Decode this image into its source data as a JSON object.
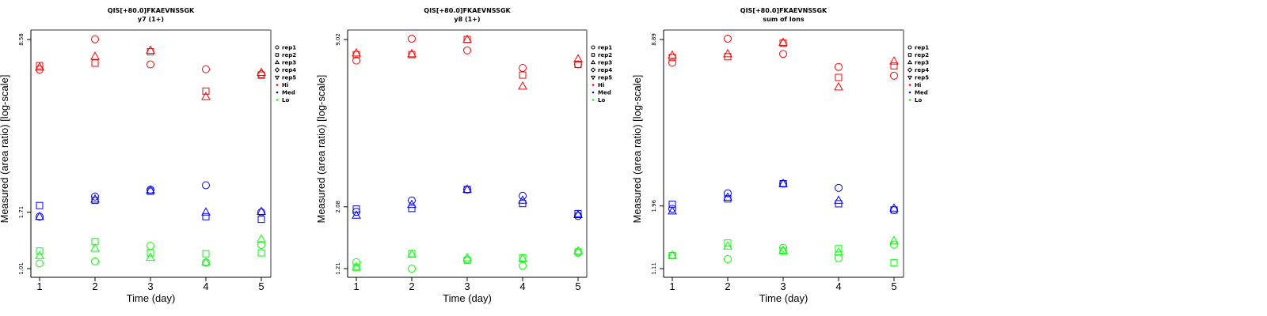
{
  "colors": {
    "Hi": "#ff0000",
    "Med": "#0000ff",
    "Lo": "#00ff00",
    "axis": "#000000",
    "frame": "#777777"
  },
  "chart_data": [
    {
      "type": "scatter",
      "title": "QIS[+80.0]FKAEVNSSGK",
      "subtitle": "y7 (1+)",
      "xlabel": "Time (day)",
      "ylabel": "Measured (area ratio) [log-scale]",
      "yscale": "log",
      "xticks": [
        1,
        2,
        3,
        4,
        5
      ],
      "yticks": [
        1.01,
        1.71,
        8.58
      ],
      "ytick_labels": [
        "1.01",
        "1.71",
        "8.58"
      ],
      "ylim": [
        0.93,
        9.9
      ],
      "xlim": [
        0.84,
        5.16
      ],
      "legend": {
        "position": "outside-right",
        "shapes": [
          "rep1",
          "rep2",
          "rep3",
          "rep4",
          "rep5"
        ],
        "groups": [
          "Hi",
          "Med",
          "Lo"
        ]
      },
      "series": [
        {
          "group": "Hi",
          "rep": "rep1",
          "x": [
            1,
            2,
            3,
            4,
            5
          ],
          "y": [
            6.48,
            8.6,
            6.8,
            6.5,
            6.2
          ]
        },
        {
          "group": "Hi",
          "rep": "rep2",
          "x": [
            1,
            2,
            3,
            4,
            5
          ],
          "y": [
            6.72,
            6.88,
            7.65,
            5.3,
            6.15
          ]
        },
        {
          "group": "Hi",
          "rep": "rep3",
          "x": [
            1,
            2,
            3,
            4,
            5
          ],
          "y": [
            6.62,
            7.32,
            7.75,
            5.03,
            6.3
          ]
        },
        {
          "group": "Med",
          "rep": "rep1",
          "x": [
            1,
            2,
            3,
            4,
            5
          ],
          "y": [
            1.64,
            1.98,
            2.11,
            2.2,
            1.71
          ]
        },
        {
          "group": "Med",
          "rep": "rep2",
          "x": [
            1,
            2,
            3,
            4,
            5
          ],
          "y": [
            1.82,
            1.91,
            2.08,
            1.64,
            1.6
          ]
        },
        {
          "group": "Med",
          "rep": "rep3",
          "x": [
            1,
            2,
            3,
            4,
            5
          ],
          "y": [
            1.64,
            1.93,
            2.1,
            1.71,
            1.72
          ]
        },
        {
          "group": "Lo",
          "rep": "rep1",
          "x": [
            1,
            2,
            3,
            4,
            5
          ],
          "y": [
            1.06,
            1.08,
            1.25,
            1.07,
            1.26
          ]
        },
        {
          "group": "Lo",
          "rep": "rep2",
          "x": [
            1,
            2,
            3,
            4,
            5
          ],
          "y": [
            1.19,
            1.3,
            1.17,
            1.16,
            1.17
          ]
        },
        {
          "group": "Lo",
          "rep": "rep3",
          "x": [
            1,
            2,
            3,
            4,
            5
          ],
          "y": [
            1.14,
            1.22,
            1.12,
            1.07,
            1.33
          ]
        }
      ]
    },
    {
      "type": "scatter",
      "title": "QIS[+80.0]FKAEVNSSGK",
      "subtitle": "y8 (1+)",
      "xlabel": "Time (day)",
      "ylabel": "Measured (area ratio) [log-scale]",
      "yscale": "log",
      "xticks": [
        1,
        2,
        3,
        4,
        5
      ],
      "yticks": [
        1.21,
        2.08,
        9.02
      ],
      "ytick_labels": [
        "1.21",
        "2.08",
        "9.02"
      ],
      "ylim": [
        1.13,
        10.3
      ],
      "xlim": [
        0.84,
        5.16
      ],
      "legend": {
        "position": "outside-right",
        "shapes": [
          "rep1",
          "rep2",
          "rep3",
          "rep4",
          "rep5"
        ],
        "groups": [
          "Hi",
          "Med",
          "Lo"
        ]
      },
      "series": [
        {
          "group": "Hi",
          "rep": "rep1",
          "x": [
            1,
            2,
            3,
            4,
            5
          ],
          "y": [
            7.5,
            9.08,
            8.2,
            7.03,
            7.25
          ]
        },
        {
          "group": "Hi",
          "rep": "rep2",
          "x": [
            1,
            2,
            3,
            4,
            5
          ],
          "y": [
            7.9,
            7.9,
            9.02,
            6.6,
            7.25
          ]
        },
        {
          "group": "Hi",
          "rep": "rep3",
          "x": [
            1,
            2,
            3,
            4,
            5
          ],
          "y": [
            8.0,
            7.95,
            9.02,
            5.98,
            7.6
          ]
        },
        {
          "group": "Med",
          "rep": "rep1",
          "x": [
            1,
            2,
            3,
            4,
            5
          ],
          "y": [
            1.99,
            2.2,
            2.42,
            2.29,
            1.92
          ]
        },
        {
          "group": "Med",
          "rep": "rep2",
          "x": [
            1,
            2,
            3,
            4,
            5
          ],
          "y": [
            2.04,
            2.05,
            2.42,
            2.14,
            1.96
          ]
        },
        {
          "group": "Med",
          "rep": "rep3",
          "x": [
            1,
            2,
            3,
            4,
            5
          ],
          "y": [
            1.93,
            2.12,
            2.42,
            2.2,
            1.94
          ]
        },
        {
          "group": "Lo",
          "rep": "rep1",
          "x": [
            1,
            2,
            3,
            4,
            5
          ],
          "y": [
            1.28,
            1.21,
            1.31,
            1.24,
            1.39
          ]
        },
        {
          "group": "Lo",
          "rep": "rep2",
          "x": [
            1,
            2,
            3,
            4,
            5
          ],
          "y": [
            1.22,
            1.38,
            1.3,
            1.33,
            1.4
          ]
        },
        {
          "group": "Lo",
          "rep": "rep3",
          "x": [
            1,
            2,
            3,
            4,
            5
          ],
          "y": [
            1.23,
            1.37,
            1.33,
            1.32,
            1.41
          ]
        }
      ]
    },
    {
      "type": "scatter",
      "title": "QIS[+80.0]FKAEVNSSGK",
      "subtitle": "sum of Ions",
      "xlabel": "Time (day)",
      "ylabel": "Measured (area ratio) [log-scale]",
      "yscale": "log",
      "xticks": [
        1,
        2,
        3,
        4,
        5
      ],
      "yticks": [
        1.11,
        1.96,
        8.89
      ],
      "ytick_labels": [
        "1.11",
        "1.96",
        "8.89"
      ],
      "ylim": [
        1.03,
        10.1
      ],
      "xlim": [
        0.84,
        5.16
      ],
      "legend": {
        "position": "outside-right",
        "shapes": [
          "rep1",
          "rep2",
          "rep3",
          "rep4",
          "rep5"
        ],
        "groups": [
          "Hi",
          "Med",
          "Lo"
        ]
      },
      "series": [
        {
          "group": "Hi",
          "rep": "rep1",
          "x": [
            1,
            2,
            3,
            4,
            5
          ],
          "y": [
            7.2,
            8.95,
            7.8,
            6.93,
            6.4
          ]
        },
        {
          "group": "Hi",
          "rep": "rep2",
          "x": [
            1,
            2,
            3,
            4,
            5
          ],
          "y": [
            7.55,
            7.6,
            8.6,
            6.3,
            7.0
          ]
        },
        {
          "group": "Hi",
          "rep": "rep3",
          "x": [
            1,
            2,
            3,
            4,
            5
          ],
          "y": [
            7.7,
            7.8,
            8.65,
            5.77,
            7.3
          ]
        },
        {
          "group": "Med",
          "rep": "rep1",
          "x": [
            1,
            2,
            3,
            4,
            5
          ],
          "y": [
            1.91,
            2.2,
            2.4,
            2.31,
            1.89
          ]
        },
        {
          "group": "Med",
          "rep": "rep2",
          "x": [
            1,
            2,
            3,
            4,
            5
          ],
          "y": [
            1.99,
            2.09,
            2.4,
            2.0,
            1.89
          ]
        },
        {
          "group": "Med",
          "rep": "rep3",
          "x": [
            1,
            2,
            3,
            4,
            5
          ],
          "y": [
            1.87,
            2.12,
            2.4,
            2.06,
            1.92
          ]
        },
        {
          "group": "Lo",
          "rep": "rep1",
          "x": [
            1,
            2,
            3,
            4,
            5
          ],
          "y": [
            1.25,
            1.21,
            1.34,
            1.22,
            1.38
          ]
        },
        {
          "group": "Lo",
          "rep": "rep2",
          "x": [
            1,
            2,
            3,
            4,
            5
          ],
          "y": [
            1.25,
            1.4,
            1.3,
            1.33,
            1.17
          ]
        },
        {
          "group": "Lo",
          "rep": "rep3",
          "x": [
            1,
            2,
            3,
            4,
            5
          ],
          "y": [
            1.25,
            1.36,
            1.31,
            1.29,
            1.43
          ]
        }
      ]
    }
  ],
  "legend_items": [
    {
      "label": "rep1",
      "symbol": "circle"
    },
    {
      "label": "rep2",
      "symbol": "square"
    },
    {
      "label": "rep3",
      "symbol": "triangle-up"
    },
    {
      "label": "rep4",
      "symbol": "diamond"
    },
    {
      "label": "rep5",
      "symbol": "triangle-down"
    },
    {
      "label": "Hi",
      "symbol": "dot",
      "group": "Hi"
    },
    {
      "label": "Med",
      "symbol": "dot",
      "group": "Med"
    },
    {
      "label": "Lo",
      "symbol": "dot",
      "group": "Lo"
    }
  ]
}
